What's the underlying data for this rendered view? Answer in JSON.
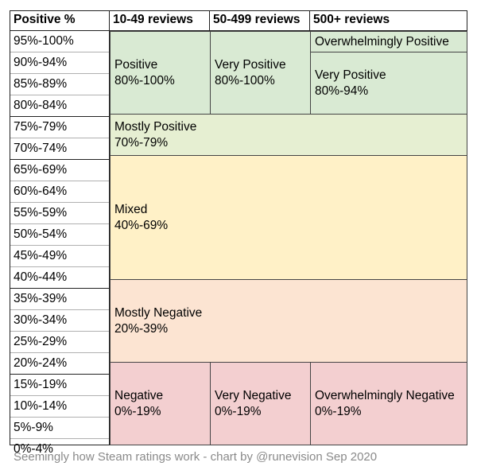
{
  "headers": {
    "col0": "Positive %",
    "col1": "10-49 reviews",
    "col2": "50-499 reviews",
    "col3": "500+ reviews"
  },
  "percent_rows": [
    "95%-100%",
    "90%-94%",
    "85%-89%",
    "80%-84%",
    "75%-79%",
    "70%-74%",
    "65%-69%",
    "60%-64%",
    "55%-59%",
    "50%-54%",
    "45%-49%",
    "40%-44%",
    "35%-39%",
    "30%-34%",
    "25%-29%",
    "20%-24%",
    "15%-19%",
    "10%-14%",
    "5%-9%",
    "0%-4%"
  ],
  "blocks": {
    "positive": {
      "name": "Positive",
      "range": "80%-100%"
    },
    "very_positive_50": {
      "name": "Very Positive",
      "range": "80%-100%"
    },
    "overwhelmingly_positive": {
      "name": "Overwhelmingly Positive"
    },
    "very_positive_500": {
      "name": "Very Positive",
      "range": "80%-94%"
    },
    "mostly_positive": {
      "name": "Mostly Positive",
      "range": "70%-79%"
    },
    "mixed": {
      "name": "Mixed",
      "range": "40%-69%"
    },
    "mostly_negative": {
      "name": "Mostly Negative",
      "range": "20%-39%"
    },
    "negative": {
      "name": "Negative",
      "range": "0%-19%"
    },
    "very_negative": {
      "name": "Very Negative",
      "range": "0%-19%"
    },
    "overwhelmingly_negative": {
      "name": "Overwhelmingly Negative",
      "range": "0%-19%"
    }
  },
  "colors": {
    "positive": "#d9ead3",
    "mostly_positive": "#e6efd2",
    "mixed": "#fff1c7",
    "mostly_negative": "#fce4d2",
    "negative": "#f3cfd0"
  },
  "caption": "Seemingly how Steam ratings work - chart by @runevision Sep 2020"
}
